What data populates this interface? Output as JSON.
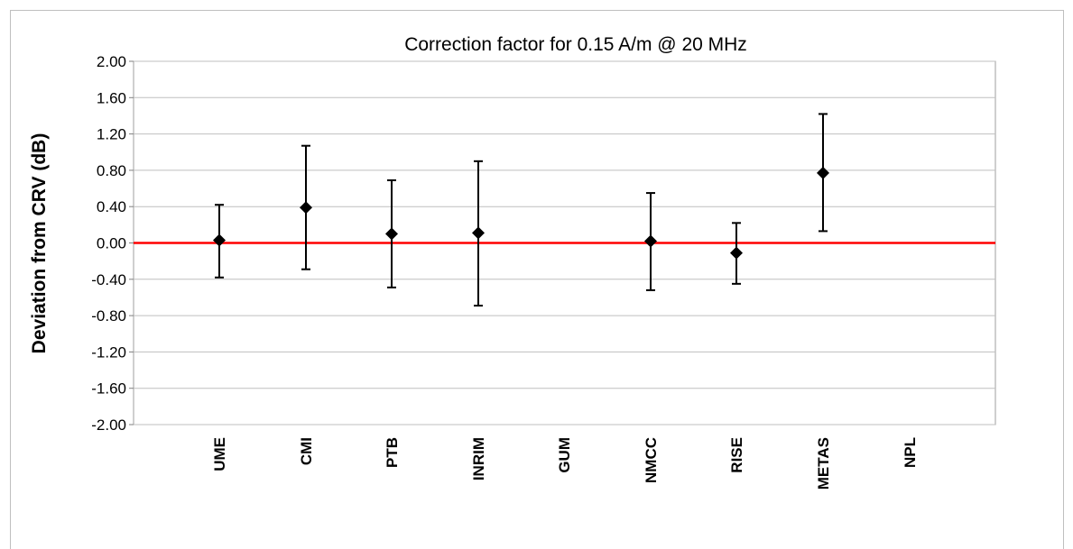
{
  "chart_data": {
    "type": "scatter",
    "title": "Correction factor for 0.15 A/m @ 20 MHz",
    "xlabel": "",
    "ylabel": "Deviation from CRV (dB)",
    "ylim": [
      -2.0,
      2.0
    ],
    "yticks": [
      "2.00",
      "1.60",
      "1.20",
      "0.80",
      "0.40",
      "0.00",
      "-0.40",
      "-0.80",
      "-1.20",
      "-1.60",
      "-2.00"
    ],
    "categories": [
      "UME",
      "CMI",
      "PTB",
      "INRIM",
      "GUM",
      "NMCC",
      "RISE",
      "METAS",
      "NPL"
    ],
    "series": [
      {
        "values": [
          0.03,
          0.39,
          0.1,
          0.11,
          null,
          0.02,
          -0.11,
          0.77,
          null
        ],
        "err_low": [
          -0.38,
          -0.29,
          -0.49,
          -0.69,
          null,
          -0.52,
          -0.45,
          0.13,
          null
        ],
        "err_high": [
          0.42,
          1.07,
          0.69,
          0.9,
          null,
          0.55,
          0.22,
          1.42,
          null
        ]
      }
    ],
    "reference_line": {
      "value": 0.0,
      "color": "#ff0000"
    },
    "grid": true,
    "colors": {
      "marker": "#000000",
      "gridline": "#bfbfbf"
    }
  }
}
